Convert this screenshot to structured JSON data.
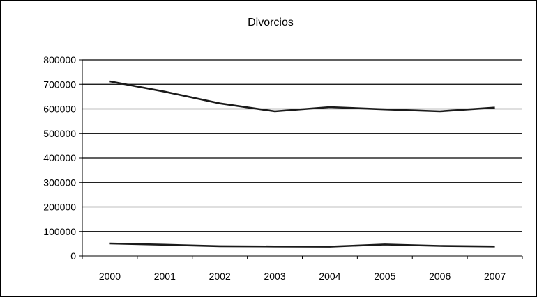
{
  "chart_data": {
    "type": "line",
    "title": "Divorcios",
    "xlabel": "",
    "ylabel": "",
    "categories": [
      "2000",
      "2001",
      "2002",
      "2003",
      "2004",
      "2005",
      "2006",
      "2007"
    ],
    "ylim": [
      0,
      800000
    ],
    "yticks": [
      0,
      100000,
      200000,
      300000,
      400000,
      500000,
      600000,
      700000,
      800000
    ],
    "ytick_labels": [
      "0",
      "100000",
      "200000",
      "300000",
      "400000",
      "500000",
      "600000",
      "700000",
      "800000"
    ],
    "grid": true,
    "legend": "none",
    "series": [
      {
        "color": "#1a1a1a",
        "values": [
          712000,
          670000,
          622000,
          590000,
          607000,
          598000,
          590000,
          605000
        ]
      },
      {
        "color": "#1a1a1a",
        "values": [
          51000,
          46000,
          40000,
          39000,
          38000,
          47000,
          41000,
          39000
        ]
      }
    ]
  }
}
